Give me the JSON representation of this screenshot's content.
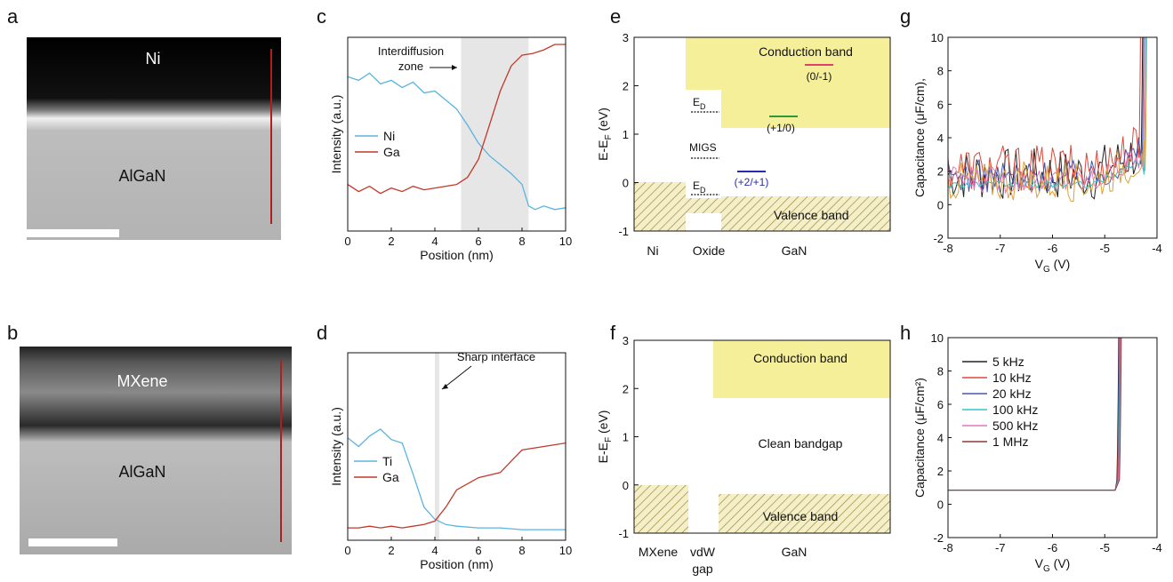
{
  "colors": {
    "ni": "#5ab4e0",
    "ga": "#c0392b",
    "ti": "#5ab4e0",
    "shade": "#e6e6e6",
    "cond": "#f6ef9a",
    "hatch": "#b8a85a"
  },
  "panels": {
    "a": {
      "letter": "a",
      "top_label": "Ni",
      "bottom_label": "AlGaN"
    },
    "b": {
      "letter": "b",
      "top_label": "MXene",
      "bottom_label": "AlGaN"
    },
    "c": {
      "letter": "c",
      "annotation_1": "Interdiffusion",
      "annotation_2": "zone"
    },
    "d": {
      "letter": "d",
      "annotation": "Sharp interface"
    },
    "e": {
      "letter": "e",
      "ylabel_main": "E-E",
      "ylabel_sub": "F",
      "ylabel_tail": " (eV)",
      "yticks": [
        "3",
        "2",
        "1",
        "0",
        "-1"
      ],
      "conduction": "Conduction band",
      "valence": "Valence band",
      "ed_top": "E",
      "ed_sub": "D",
      "migs": "MIGS",
      "ed_bot": "E",
      "ed_bot_sub": "D",
      "level_1": "(0/-1)",
      "level_2": "(+1/0)",
      "level_3": "(+2/+1)",
      "xcat_1": "Ni",
      "xcat_2": "Oxide",
      "xcat_3": "GaN"
    },
    "f": {
      "letter": "f",
      "ylabel_main": "E-E",
      "ylabel_sub": "F",
      "ylabel_tail": " (eV)",
      "yticks": [
        "3",
        "2",
        "1",
        "0",
        "-1"
      ],
      "conduction": "Conduction band",
      "valence": "Valence band",
      "clean": "Clean bandgap",
      "xcat_1": "MXene",
      "xcat_2a": "vdW",
      "xcat_2b": "gap",
      "xcat_3": "GaN"
    },
    "g": {
      "letter": "g",
      "ylabel": "Capacitance (μF/cm²)",
      "ylabel_g": "Capacitance (μF/cm",
      "ylabel_g_tail": "),"
    },
    "h": {
      "letter": "h",
      "ylabel": "Capacitance (μF/cm²)"
    }
  },
  "chart_data": [
    {
      "id": "c",
      "type": "line",
      "xlabel": "Position (nm)",
      "ylabel": "Intensity (a.u.)",
      "xlim": [
        0,
        10
      ],
      "xticks": [
        "0",
        "2",
        "4",
        "6",
        "8",
        "10"
      ],
      "shaded_region": [
        5.2,
        8.3
      ],
      "series": [
        {
          "name": "Ni",
          "x": [
            0,
            0.5,
            1,
            1.5,
            2,
            2.5,
            3,
            3.5,
            4,
            4.5,
            5,
            5.5,
            6,
            6.5,
            7,
            7.5,
            8,
            8.3,
            8.6,
            9,
            9.5,
            10
          ],
          "y": [
            0.82,
            0.8,
            0.84,
            0.78,
            0.8,
            0.76,
            0.79,
            0.73,
            0.74,
            0.69,
            0.64,
            0.55,
            0.45,
            0.38,
            0.33,
            0.28,
            0.22,
            0.1,
            0.08,
            0.1,
            0.08,
            0.09
          ]
        },
        {
          "name": "Ga",
          "x": [
            0,
            0.5,
            1,
            1.5,
            2,
            2.5,
            3,
            3.5,
            4,
            4.5,
            5,
            5.5,
            6,
            6.5,
            7,
            7.5,
            8,
            8.5,
            9,
            9.5,
            10
          ],
          "y": [
            0.22,
            0.18,
            0.21,
            0.17,
            0.2,
            0.18,
            0.21,
            0.19,
            0.2,
            0.21,
            0.22,
            0.26,
            0.36,
            0.55,
            0.74,
            0.88,
            0.94,
            0.95,
            0.97,
            1.0,
            1.0
          ]
        }
      ]
    },
    {
      "id": "d",
      "type": "line",
      "xlabel": "Position (nm)",
      "ylabel": "Intensity (a.u.)",
      "xlim": [
        0,
        10
      ],
      "xticks": [
        "0",
        "2",
        "4",
        "6",
        "8",
        "10"
      ],
      "shaded_region": [
        4.0,
        4.2
      ],
      "series": [
        {
          "name": "Ti",
          "x": [
            0,
            0.5,
            1,
            1.5,
            2,
            2.5,
            3,
            3.5,
            4,
            4.5,
            5,
            6,
            7,
            8,
            9,
            10
          ],
          "y": [
            0.55,
            0.5,
            0.56,
            0.6,
            0.54,
            0.52,
            0.34,
            0.15,
            0.08,
            0.05,
            0.04,
            0.03,
            0.03,
            0.02,
            0.02,
            0.02
          ]
        },
        {
          "name": "Ga",
          "x": [
            0,
            0.5,
            1,
            1.5,
            2,
            2.5,
            3,
            3.5,
            4,
            4.5,
            5,
            6,
            7,
            8,
            9,
            10
          ],
          "y": [
            0.03,
            0.03,
            0.04,
            0.03,
            0.04,
            0.03,
            0.04,
            0.05,
            0.07,
            0.15,
            0.25,
            0.32,
            0.35,
            0.48,
            0.5,
            0.52
          ]
        }
      ]
    },
    {
      "id": "g",
      "type": "line",
      "xlabel": "V",
      "xlabel_sub": "G",
      "xlabel_tail": " (V)",
      "ylim": [
        -2,
        10
      ],
      "xlim": [
        -8,
        -4
      ],
      "xticks": [
        "-8",
        "-7",
        "-6",
        "-5",
        "-4"
      ],
      "yticks": [
        "10",
        "8",
        "6",
        "4",
        "2",
        "0",
        "-2"
      ],
      "series": [
        {
          "color": "#222222",
          "baseline": 1.8,
          "noise": 1.6,
          "rise_at": -4.32
        },
        {
          "color": "#d94a3c",
          "baseline": 2.2,
          "noise": 1.4,
          "rise_at": -4.36
        },
        {
          "color": "#4a55b0",
          "baseline": 1.7,
          "noise": 1.0,
          "rise_at": -4.3
        },
        {
          "color": "#35c4c8",
          "baseline": 1.2,
          "noise": 0.2,
          "rise_at": -4.26
        },
        {
          "color": "#e07ab8",
          "baseline": 1.5,
          "noise": 0.8,
          "rise_at": -4.28
        },
        {
          "color": "#d9a23a",
          "baseline": 1.4,
          "noise": 1.2,
          "rise_at": -4.24
        }
      ]
    },
    {
      "id": "h",
      "type": "line",
      "xlabel": "V",
      "xlabel_sub": "G",
      "xlabel_tail": " (V)",
      "ylim": [
        -2,
        10
      ],
      "xlim": [
        -8,
        -4
      ],
      "xticks": [
        "-8",
        "-7",
        "-6",
        "-5",
        "-4"
      ],
      "yticks": [
        "10",
        "8",
        "6",
        "4",
        "2",
        "0",
        "-2"
      ],
      "series": [
        {
          "name": "5 kHz",
          "color": "#222222",
          "baseline": 0.85,
          "rise_at": -4.78
        },
        {
          "name": "10 kHz",
          "color": "#d94a3c",
          "baseline": 0.85,
          "rise_at": -4.77
        },
        {
          "name": "20 kHz",
          "color": "#4a55b0",
          "baseline": 0.85,
          "rise_at": -4.76
        },
        {
          "name": "100 kHz",
          "color": "#35c4c8",
          "baseline": 0.85,
          "rise_at": -4.75
        },
        {
          "name": "500 kHz",
          "color": "#e07ab8",
          "baseline": 0.85,
          "rise_at": -4.74
        },
        {
          "name": "1 MHz",
          "color": "#8b3a3a",
          "baseline": 0.85,
          "rise_at": -4.73
        }
      ]
    }
  ]
}
